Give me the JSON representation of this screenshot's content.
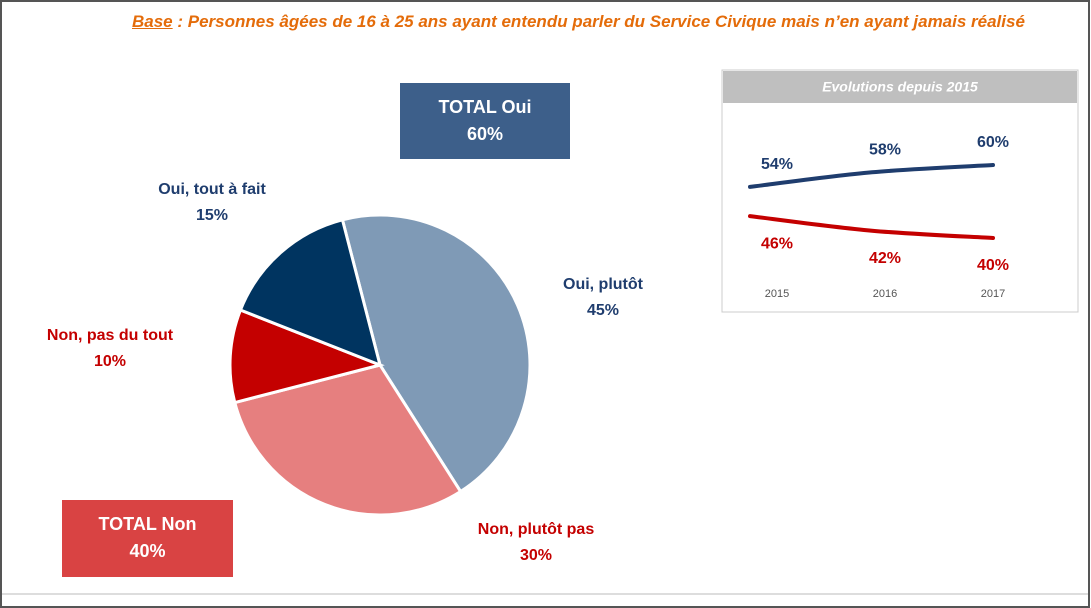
{
  "chart_data": [
    {
      "type": "pie",
      "base_label": "Base",
      "subtitle": " : Personnes âgées de 16 à 25 ans ayant entendu parler du Service Civique mais n’en ayant jamais réalisé",
      "categories": [
        "Oui, plutôt",
        "Non, plutôt pas",
        "Non, pas du tout",
        "Oui, tout à fait"
      ],
      "values": [
        45,
        30,
        10,
        15
      ],
      "value_labels": [
        "45%",
        "30%",
        "10%",
        "15%"
      ],
      "colors": [
        "#7f9ab6",
        "#e67f7f",
        "#c40000",
        "#003460"
      ],
      "annotations": [
        {
          "text": "TOTAL Oui",
          "value": 60,
          "value_label": "60%",
          "color": "#3d5f8a"
        },
        {
          "text": "TOTAL Non",
          "value": 40,
          "value_label": "40%",
          "color": "#d94343"
        }
      ]
    },
    {
      "type": "line",
      "title": "Evolutions depuis 2015",
      "categories": [
        "2015",
        "2016",
        "2017"
      ],
      "series": [
        {
          "color": "#1f3d6e",
          "values": [
            54,
            58,
            60
          ],
          "value_labels": [
            "54%",
            "58%",
            "60%"
          ]
        },
        {
          "color": "#c40000",
          "values": [
            46,
            42,
            40
          ],
          "value_labels": [
            "46%",
            "42%",
            "40%"
          ]
        }
      ]
    }
  ]
}
